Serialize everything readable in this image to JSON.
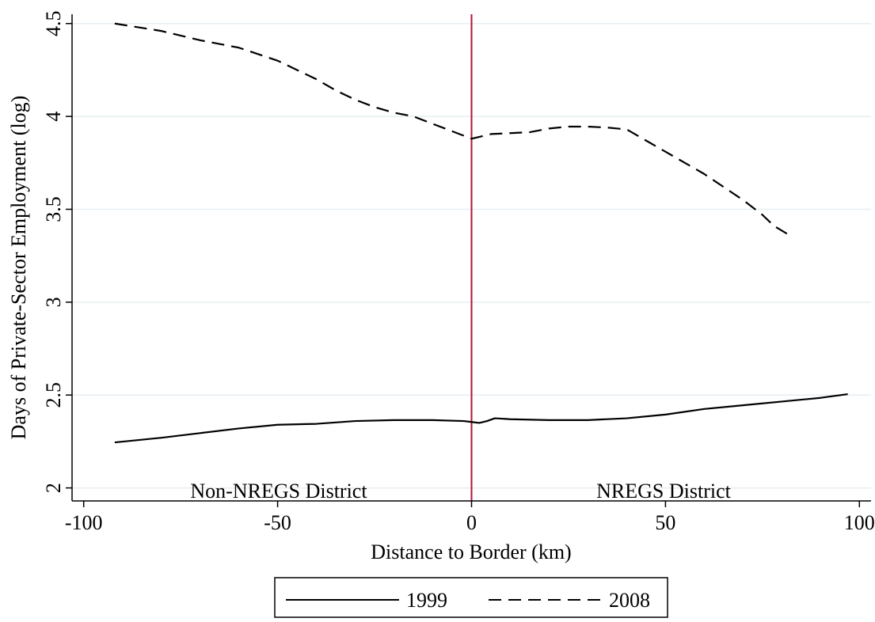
{
  "chart_data": {
    "type": "line",
    "title": "",
    "xlabel": "Distance to Border (km)",
    "ylabel": "Days of Private-Sector Employment (log)",
    "xlim": [
      -103,
      103
    ],
    "ylim": [
      1.93,
      4.55
    ],
    "xticks": [
      -100,
      -50,
      0,
      50,
      100
    ],
    "xtick_labels": [
      "-100",
      "-50",
      "0",
      "50",
      "100"
    ],
    "yticks": [
      2,
      2.5,
      3,
      3.5,
      4,
      4.5
    ],
    "ytick_labels": [
      "2",
      "2.5",
      "3",
      "3.5",
      "4",
      "4.5"
    ],
    "grid": "horizontal",
    "cutoff": {
      "x": 0,
      "color": "#b5123a"
    },
    "region_labels": {
      "left": "Non-NREGS District",
      "right": "NREGS District"
    },
    "legend_position": "bottom-center",
    "series": [
      {
        "name": "1999",
        "style": "solid",
        "color": "#000000",
        "x": [
          -92,
          -80,
          -70,
          -60,
          -50,
          -40,
          -30,
          -20,
          -10,
          -2,
          0,
          2,
          4,
          6,
          10,
          20,
          30,
          40,
          50,
          60,
          70,
          80,
          90,
          97
        ],
        "y": [
          2.245,
          2.27,
          2.295,
          2.32,
          2.34,
          2.345,
          2.36,
          2.365,
          2.365,
          2.36,
          2.355,
          2.35,
          2.36,
          2.375,
          2.37,
          2.365,
          2.365,
          2.375,
          2.395,
          2.425,
          2.445,
          2.465,
          2.485,
          2.505
        ]
      },
      {
        "name": "2008",
        "style": "dashed",
        "color": "#000000",
        "x": [
          -92,
          -80,
          -70,
          -60,
          -50,
          -40,
          -35,
          -30,
          -25,
          -20,
          -15,
          -10,
          -5,
          0,
          5,
          10,
          15,
          20,
          25,
          30,
          35,
          40,
          45,
          50,
          55,
          60,
          65,
          70,
          75,
          78,
          82
        ],
        "y": [
          4.5,
          4.46,
          4.41,
          4.37,
          4.3,
          4.2,
          4.14,
          4.09,
          4.05,
          4.02,
          4.0,
          3.96,
          3.92,
          3.88,
          3.905,
          3.91,
          3.915,
          3.935,
          3.945,
          3.945,
          3.94,
          3.93,
          3.87,
          3.81,
          3.75,
          3.69,
          3.62,
          3.55,
          3.47,
          3.41,
          3.36
        ]
      }
    ]
  }
}
